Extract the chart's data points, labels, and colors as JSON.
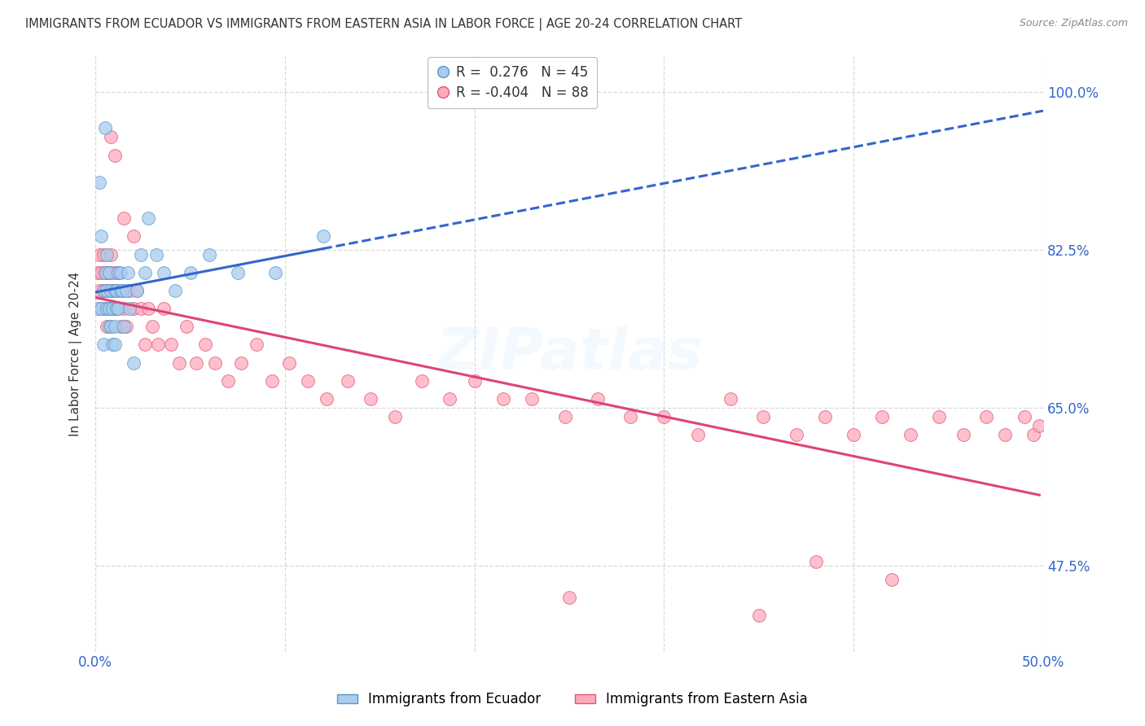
{
  "title": "IMMIGRANTS FROM ECUADOR VS IMMIGRANTS FROM EASTERN ASIA IN LABOR FORCE | AGE 20-24 CORRELATION CHART",
  "source": "Source: ZipAtlas.com",
  "ylabel": "In Labor Force | Age 20-24",
  "xlim": [
    0.0,
    0.5
  ],
  "ylim": [
    0.38,
    1.04
  ],
  "xticks": [
    0.0,
    0.1,
    0.2,
    0.3,
    0.4,
    0.5
  ],
  "ytick_labels_right": [
    "100.0%",
    "82.5%",
    "65.0%",
    "47.5%"
  ],
  "ytick_vals_right": [
    1.0,
    0.825,
    0.65,
    0.475
  ],
  "grid_color": "#d0d0d0",
  "background_color": "#ffffff",
  "ecuador_fill_color": "#aaccee",
  "ecuador_edge_color": "#5599cc",
  "eastern_asia_fill_color": "#ffaabb",
  "eastern_asia_edge_color": "#dd5577",
  "ecuador_line_color": "#3366cc",
  "eastern_asia_line_color": "#dd4477",
  "legend_R_ecuador": "0.276",
  "legend_N_ecuador": "45",
  "legend_R_eastern_asia": "-0.404",
  "legend_N_eastern_asia": "88",
  "legend_label_ecuador": "Immigrants from Ecuador",
  "legend_label_eastern_asia": "Immigrants from Eastern Asia",
  "title_color": "#333333",
  "source_color": "#888888",
  "axis_label_color": "#333333",
  "tick_color": "#3366cc",
  "watermark_color": "#ccddee"
}
